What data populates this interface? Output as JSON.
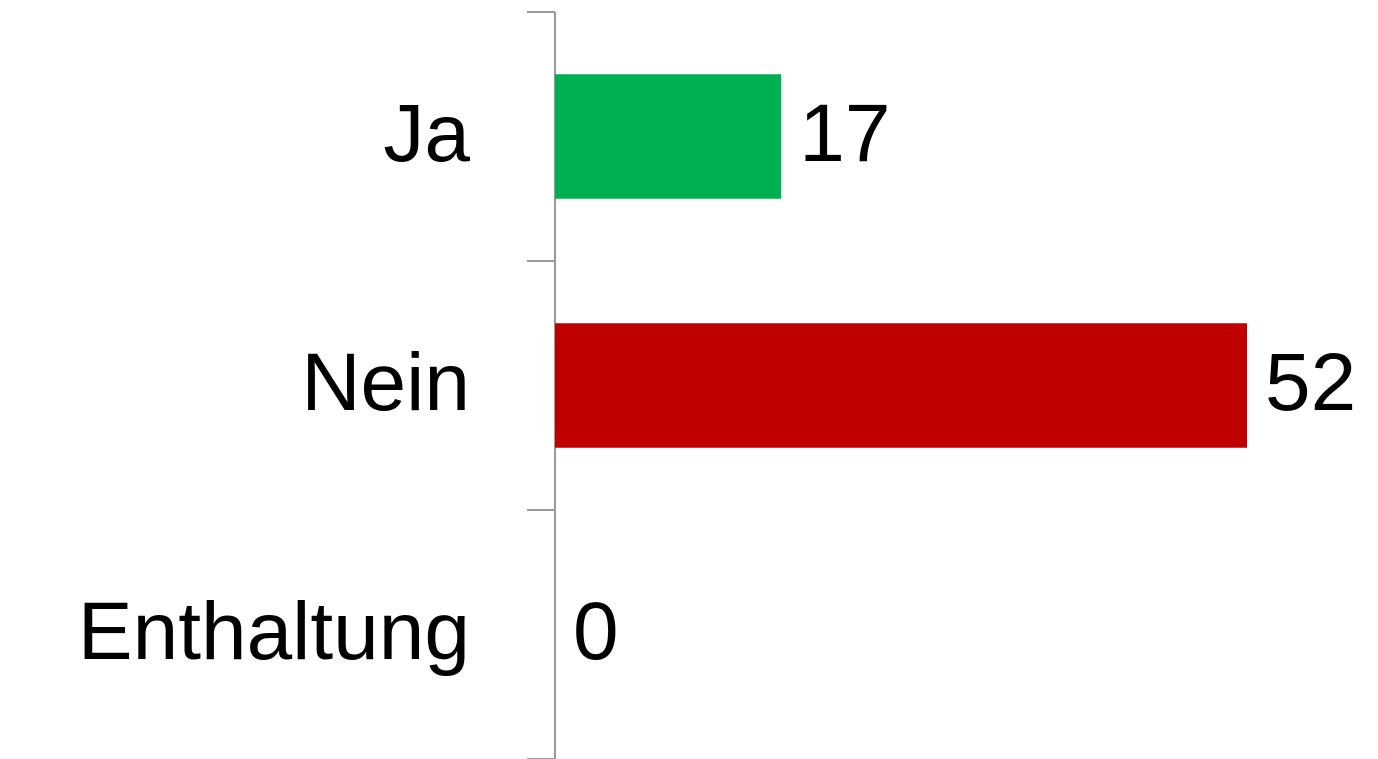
{
  "chart_data": {
    "type": "bar",
    "orientation": "horizontal",
    "categories": [
      "Ja",
      "Nein",
      "Enthaltung"
    ],
    "values": [
      17,
      52,
      0
    ],
    "colors": [
      "#00b050",
      "#c00000",
      "#a5a5a5"
    ]
  }
}
